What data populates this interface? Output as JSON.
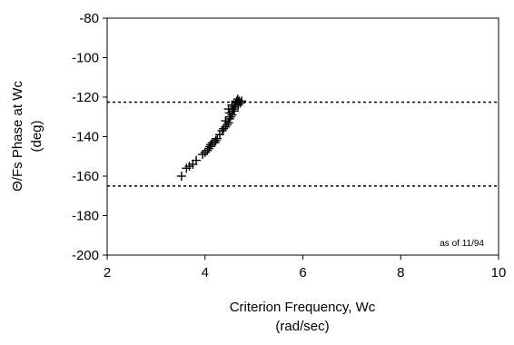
{
  "chart_data": {
    "type": "scatter",
    "marker": "plus",
    "xlabel": [
      "Criterion Frequency, Wc",
      "(rad/sec)"
    ],
    "ylabel": [
      "Θ/Fs Phase at Wc",
      "(deg)"
    ],
    "xlim": [
      2,
      10
    ],
    "ylim": [
      -200,
      -80
    ],
    "x_ticks": [
      2,
      4,
      6,
      8,
      10
    ],
    "y_ticks": [
      -80,
      -100,
      -120,
      -140,
      -160,
      -180,
      -200
    ],
    "grid": false,
    "reference_lines": [
      {
        "axis": "y",
        "value": -122.5,
        "style": "dashed"
      },
      {
        "axis": "y",
        "value": -165,
        "style": "dashed"
      }
    ],
    "annotation": "as of 11/94",
    "points": [
      [
        3.52,
        -160
      ],
      [
        3.62,
        -156
      ],
      [
        3.68,
        -155
      ],
      [
        3.75,
        -154
      ],
      [
        3.82,
        -152
      ],
      [
        3.95,
        -149
      ],
      [
        4.0,
        -148
      ],
      [
        4.05,
        -147
      ],
      [
        4.08,
        -146
      ],
      [
        4.1,
        -145
      ],
      [
        4.12,
        -144
      ],
      [
        4.15,
        -143
      ],
      [
        4.2,
        -143
      ],
      [
        4.22,
        -142
      ],
      [
        4.25,
        -141
      ],
      [
        4.3,
        -139
      ],
      [
        4.35,
        -137
      ],
      [
        4.38,
        -136
      ],
      [
        4.42,
        -135
      ],
      [
        4.45,
        -134
      ],
      [
        4.48,
        -133
      ],
      [
        4.5,
        -131
      ],
      [
        4.52,
        -130
      ],
      [
        4.55,
        -129
      ],
      [
        4.56,
        -127
      ],
      [
        4.58,
        -126
      ],
      [
        4.6,
        -125
      ],
      [
        4.62,
        -124
      ],
      [
        4.63,
        -123
      ],
      [
        4.65,
        -122
      ],
      [
        4.67,
        -121
      ],
      [
        4.68,
        -124
      ],
      [
        4.7,
        -122
      ],
      [
        4.72,
        -123
      ],
      [
        4.75,
        -122
      ],
      [
        4.5,
        -128
      ],
      [
        4.48,
        -126
      ],
      [
        4.55,
        -124
      ],
      [
        4.6,
        -127
      ],
      [
        4.42,
        -132
      ]
    ]
  }
}
